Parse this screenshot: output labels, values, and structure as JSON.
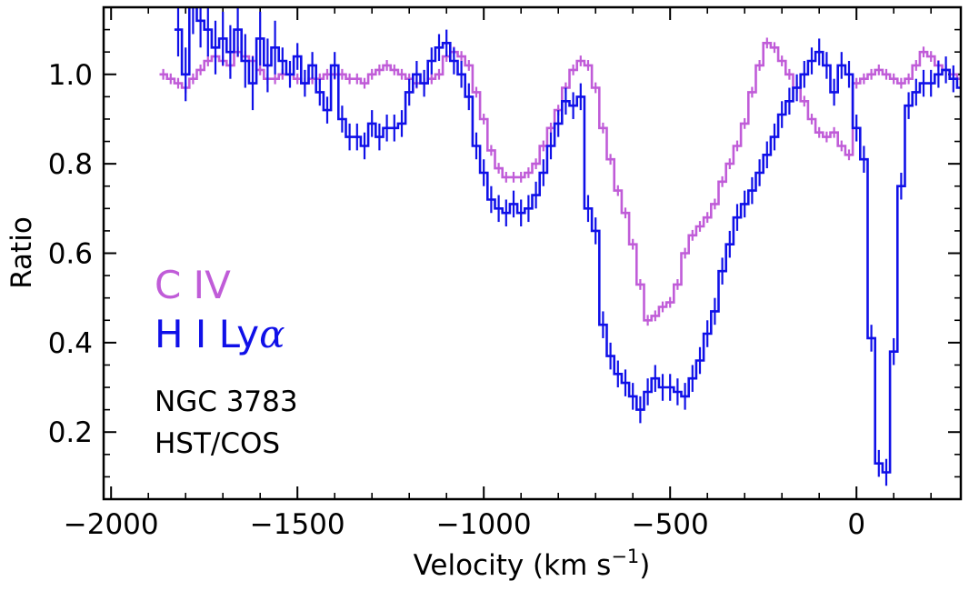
{
  "chart_data": {
    "type": "line",
    "step": true,
    "xlabel": "Velocity (km s",
    "xlabel_exp": "−1",
    "xlabel_close": ")",
    "ylabel": "Ratio",
    "xlim": [
      -2020,
      280
    ],
    "ylim": [
      0.05,
      1.15
    ],
    "xticks": [
      -2000,
      -1500,
      -1000,
      -500,
      0
    ],
    "xtick_labels": [
      "−2000",
      "−1500",
      "−1000",
      "−500",
      "0"
    ],
    "yticks": [
      0.2,
      0.4,
      0.6,
      0.8,
      1.0
    ],
    "ytick_labels": [
      "0.2",
      "0.4",
      "0.6",
      "0.8",
      "1.0"
    ],
    "annotations": [
      "NGC 3783",
      "HST/COS"
    ],
    "series": [
      {
        "name": "C IV",
        "legend_label": "C IV",
        "color": "#c05cd8",
        "x": [
          -1860,
          -1840,
          -1820,
          -1800,
          -1780,
          -1760,
          -1740,
          -1720,
          -1700,
          -1680,
          -1660,
          -1640,
          -1620,
          -1600,
          -1580,
          -1560,
          -1540,
          -1520,
          -1500,
          -1480,
          -1460,
          -1440,
          -1420,
          -1400,
          -1380,
          -1360,
          -1340,
          -1320,
          -1300,
          -1280,
          -1260,
          -1240,
          -1220,
          -1200,
          -1180,
          -1160,
          -1140,
          -1120,
          -1100,
          -1080,
          -1060,
          -1040,
          -1020,
          -1000,
          -980,
          -960,
          -940,
          -920,
          -900,
          -880,
          -860,
          -840,
          -820,
          -800,
          -780,
          -760,
          -740,
          -720,
          -700,
          -680,
          -660,
          -640,
          -620,
          -600,
          -580,
          -560,
          -540,
          -520,
          -500,
          -480,
          -460,
          -440,
          -420,
          -400,
          -380,
          -360,
          -340,
          -320,
          -300,
          -280,
          -260,
          -240,
          -220,
          -200,
          -180,
          -160,
          -140,
          -120,
          -100,
          -80,
          -60,
          -40,
          -20,
          0,
          20,
          40,
          60,
          80,
          100,
          120,
          140,
          160,
          180,
          200,
          220,
          240,
          260,
          280
        ],
        "values": [
          1.0,
          0.99,
          0.98,
          0.97,
          0.99,
          1.01,
          1.03,
          1.04,
          1.03,
          1.02,
          1.05,
          1.04,
          1.03,
          1.01,
          0.99,
          0.99,
          1.0,
          1.0,
          0.99,
          0.98,
          0.99,
          0.99,
          1.0,
          1.0,
          1.0,
          0.99,
          0.99,
          0.98,
          1.0,
          1.01,
          1.02,
          1.01,
          1.0,
          0.99,
          0.98,
          0.98,
          0.99,
          1.0,
          1.04,
          1.05,
          1.04,
          1.02,
          0.96,
          0.9,
          0.83,
          0.79,
          0.77,
          0.77,
          0.77,
          0.78,
          0.8,
          0.84,
          0.88,
          0.92,
          0.97,
          1.01,
          1.03,
          1.02,
          0.97,
          0.88,
          0.81,
          0.74,
          0.69,
          0.62,
          0.53,
          0.45,
          0.46,
          0.48,
          0.49,
          0.53,
          0.6,
          0.64,
          0.66,
          0.68,
          0.71,
          0.76,
          0.8,
          0.84,
          0.89,
          0.96,
          1.02,
          1.07,
          1.06,
          1.03,
          1.0,
          0.97,
          0.94,
          0.9,
          0.87,
          0.86,
          0.87,
          0.84,
          0.82,
          0.98,
          0.99,
          1.0,
          1.01,
          1.0,
          0.99,
          0.98,
          0.99,
          1.02,
          1.05,
          1.04,
          1.02,
          1.01,
          1.0,
          0.99
        ]
      },
      {
        "name": "H I Lyα",
        "legend_label_main": "H I Ly",
        "legend_label_greek": "α",
        "color": "#1010e8",
        "x": [
          -1820,
          -1800,
          -1780,
          -1760,
          -1740,
          -1720,
          -1700,
          -1680,
          -1660,
          -1640,
          -1620,
          -1600,
          -1580,
          -1560,
          -1540,
          -1520,
          -1500,
          -1480,
          -1460,
          -1440,
          -1420,
          -1400,
          -1380,
          -1360,
          -1340,
          -1320,
          -1300,
          -1280,
          -1260,
          -1240,
          -1220,
          -1200,
          -1180,
          -1160,
          -1140,
          -1120,
          -1100,
          -1080,
          -1060,
          -1040,
          -1020,
          -1000,
          -980,
          -960,
          -940,
          -920,
          -900,
          -880,
          -860,
          -840,
          -820,
          -800,
          -780,
          -760,
          -740,
          -720,
          -700,
          -680,
          -660,
          -640,
          -620,
          -600,
          -580,
          -560,
          -540,
          -520,
          -500,
          -480,
          -460,
          -440,
          -420,
          -400,
          -380,
          -360,
          -340,
          -320,
          -300,
          -280,
          -260,
          -240,
          -220,
          -200,
          -180,
          -160,
          -140,
          -120,
          -100,
          -80,
          -60,
          -40,
          -20,
          0,
          20,
          40,
          60,
          80,
          100,
          120,
          140,
          160,
          180,
          200,
          220,
          240,
          260,
          280
        ],
        "values": [
          1.1,
          1.0,
          1.15,
          1.12,
          1.1,
          1.06,
          1.08,
          1.05,
          1.1,
          1.03,
          0.98,
          1.08,
          1.02,
          1.06,
          1.03,
          1.0,
          1.04,
          0.98,
          1.02,
          0.96,
          0.92,
          1.02,
          0.9,
          0.86,
          0.86,
          0.84,
          0.89,
          0.86,
          0.88,
          0.88,
          0.89,
          0.96,
          1.0,
          0.98,
          1.03,
          1.06,
          1.07,
          1.03,
          1.0,
          0.95,
          0.84,
          0.78,
          0.72,
          0.7,
          0.69,
          0.71,
          0.69,
          0.7,
          0.73,
          0.78,
          0.84,
          0.89,
          0.94,
          0.93,
          0.95,
          0.7,
          0.65,
          0.44,
          0.37,
          0.33,
          0.31,
          0.28,
          0.25,
          0.29,
          0.32,
          0.3,
          0.3,
          0.29,
          0.28,
          0.32,
          0.36,
          0.42,
          0.47,
          0.56,
          0.62,
          0.68,
          0.71,
          0.74,
          0.78,
          0.82,
          0.86,
          0.91,
          0.94,
          0.97,
          1.0,
          1.03,
          1.05,
          1.02,
          0.96,
          1.02,
          1.0,
          0.88,
          0.81,
          0.41,
          0.13,
          0.11,
          0.38,
          0.75,
          0.93,
          0.96,
          0.98,
          0.98,
          1.0,
          1.01,
          0.99,
          0.97
        ]
      }
    ]
  }
}
